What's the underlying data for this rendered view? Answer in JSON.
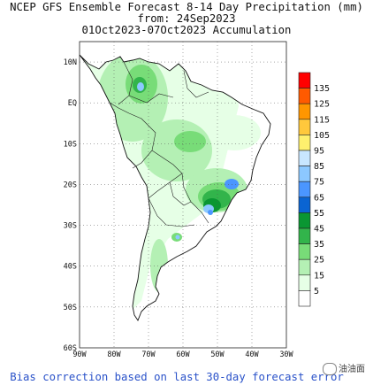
{
  "title": {
    "line1": "NCEP GFS Ensemble Forecast 8-14 Day Precipitation (mm)",
    "line2": "from: 24Sep2023",
    "line3": "01Oct2023-07Oct2023 Accumulation"
  },
  "map": {
    "lat_labels": [
      "10N",
      "EQ",
      "10S",
      "20S",
      "30S",
      "40S",
      "50S",
      "60S"
    ],
    "lon_labels": [
      "90W",
      "80W",
      "70W",
      "60W",
      "50W",
      "40W",
      "30W"
    ],
    "extent": {
      "lon": [
        -90,
        -30
      ],
      "lat": [
        -60,
        15
      ]
    }
  },
  "legend": {
    "levels": [
      "135",
      "125",
      "115",
      "105",
      "95",
      "85",
      "75",
      "65",
      "55",
      "45",
      "35",
      "25",
      "15",
      "5"
    ],
    "colors": [
      "#ff0000",
      "#ff5a00",
      "#ff9600",
      "#ffc83c",
      "#fff06e",
      "#c8e6ff",
      "#8cc8ff",
      "#4b96ff",
      "#0a64d2",
      "#0a9632",
      "#32b44b",
      "#78dc78",
      "#b4f0b4",
      "#e6ffe6",
      "#ffffff"
    ]
  },
  "footer": "Bias correction based on last 30-day forecast error",
  "watermark": "油油面",
  "colors": {
    "coast": "#111111",
    "grid": "#555555",
    "footer_text": "#2a52c9"
  }
}
